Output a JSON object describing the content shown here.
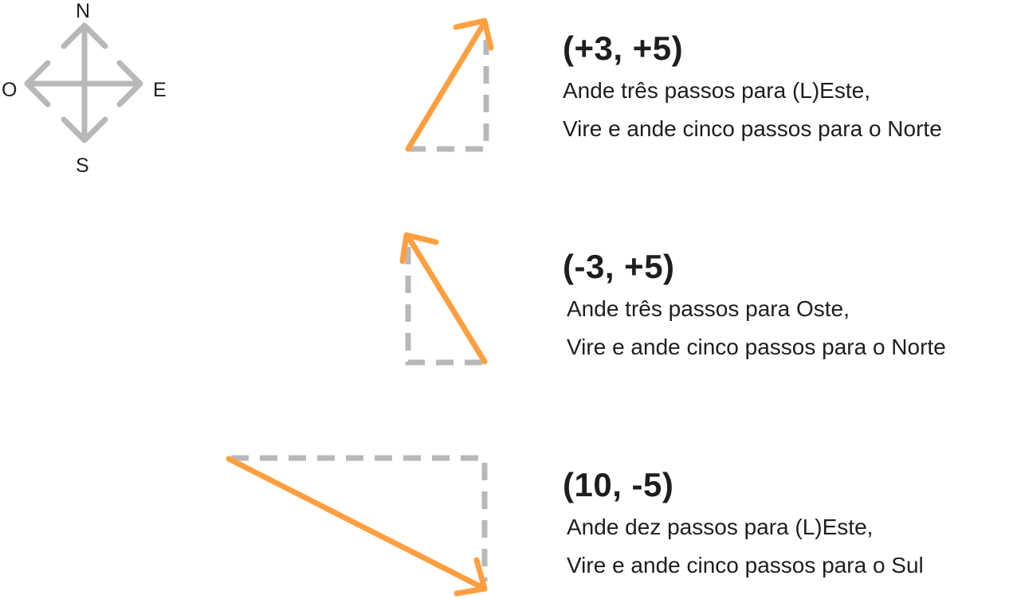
{
  "compass": {
    "north": "N",
    "south": "S",
    "east": "E",
    "west": "O",
    "arrow_color": "#b8b8b8"
  },
  "colors": {
    "vector": "#ff9f40",
    "guide": "#b8b8b8",
    "text": "#1e1e1e"
  },
  "vectors": [
    {
      "coord": "(+3, +5)",
      "line1": "Ande três passos para (L)Este,",
      "line2": "Vire e ande cinco passos para o Norte"
    },
    {
      "coord": "(-3, +5)",
      "line1": "Ande três passos para Oste,",
      "line2": "Vire e ande cinco passos para o Norte"
    },
    {
      "coord": "(10, -5)",
      "line1": "Ande dez passos para (L)Este,",
      "line2": "Vire e ande cinco passos para o Sul"
    }
  ]
}
